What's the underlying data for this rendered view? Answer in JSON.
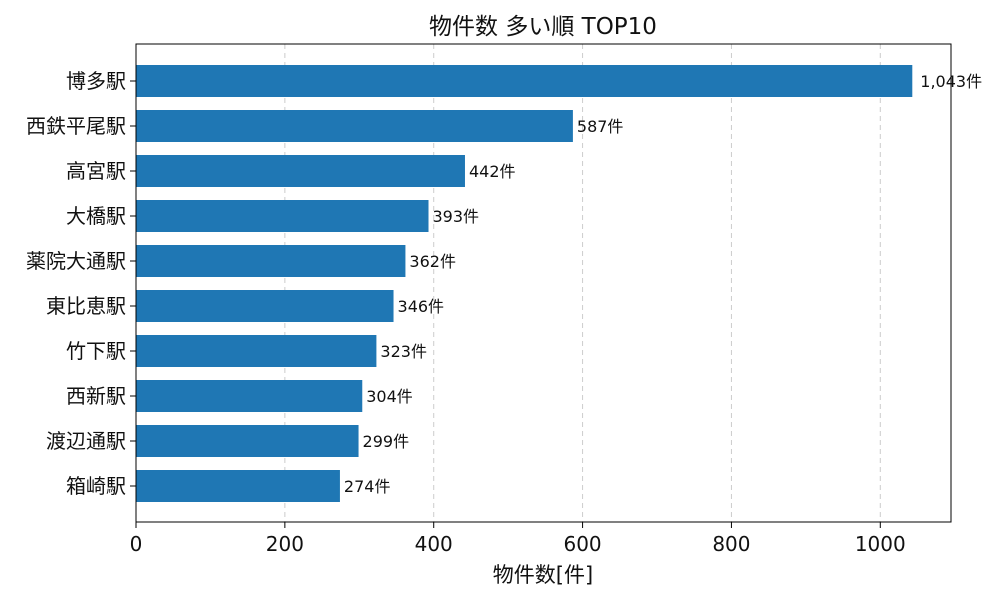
{
  "chart_data": {
    "type": "bar",
    "orientation": "horizontal",
    "title": "物件数 多い順 TOP10",
    "xlabel": "物件数[件]",
    "ylabel": "",
    "xlim": [
      0,
      1095
    ],
    "xticks": [
      0,
      200,
      400,
      600,
      800,
      1000
    ],
    "grid": "x-dashed",
    "bar_color": "#1f77b4",
    "categories": [
      "博多駅",
      "西鉄平尾駅",
      "高宮駅",
      "大橋駅",
      "薬院大通駅",
      "東比恵駅",
      "竹下駅",
      "西新駅",
      "渡辺通駅",
      "箱崎駅"
    ],
    "values": [
      1043,
      587,
      442,
      393,
      362,
      346,
      323,
      304,
      299,
      274
    ],
    "data_labels": [
      "1,043件",
      "587件",
      "442件",
      "393件",
      "362件",
      "346件",
      "323件",
      "304件",
      "299件",
      "274件"
    ]
  }
}
